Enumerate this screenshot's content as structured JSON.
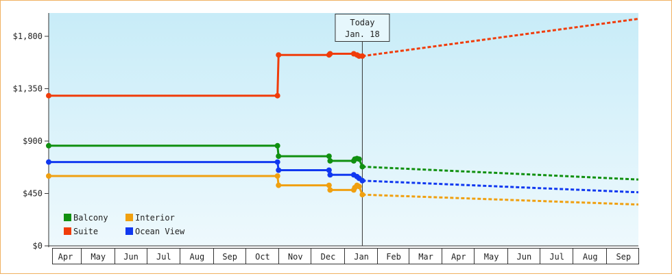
{
  "chart_data": {
    "type": "line",
    "title": "",
    "xlabel": "",
    "ylabel": "",
    "ylim": [
      0,
      2000
    ],
    "y_ticks": [
      {
        "value": 0,
        "label": "$0"
      },
      {
        "value": 450,
        "label": "$450"
      },
      {
        "value": 900,
        "label": "$900"
      },
      {
        "value": 1350,
        "label": "$1,350"
      },
      {
        "value": 1800,
        "label": "$1,800"
      }
    ],
    "x_range": [
      "2023-04-01",
      "2024-10-01"
    ],
    "x_ticks": [
      {
        "date": "2023-04-01",
        "label": "Apr"
      },
      {
        "date": "2023-05-01",
        "label": "May"
      },
      {
        "date": "2023-06-01",
        "label": "Jun"
      },
      {
        "date": "2023-07-01",
        "label": "Jul"
      },
      {
        "date": "2023-08-01",
        "label": "Aug"
      },
      {
        "date": "2023-09-01",
        "label": "Sep"
      },
      {
        "date": "2023-10-01",
        "label": "Oct"
      },
      {
        "date": "2023-11-01",
        "label": "Nov"
      },
      {
        "date": "2023-12-01",
        "label": "Dec"
      },
      {
        "date": "2024-01-01",
        "label": "Jan"
      },
      {
        "date": "2024-02-01",
        "label": "Feb"
      },
      {
        "date": "2024-03-01",
        "label": "Mar"
      },
      {
        "date": "2024-04-01",
        "label": "Apr"
      },
      {
        "date": "2024-05-01",
        "label": "May"
      },
      {
        "date": "2024-06-01",
        "label": "Jun"
      },
      {
        "date": "2024-07-01",
        "label": "Jul"
      },
      {
        "date": "2024-08-01",
        "label": "Aug"
      },
      {
        "date": "2024-09-01",
        "label": "Sep"
      }
    ],
    "today": {
      "date": "2024-01-18",
      "line1": "Today",
      "line2": "Jan. 18"
    },
    "legend_position": "bottom-left",
    "grid": false,
    "background_colors": [
      "#c8ecf8",
      "#eef9fd"
    ],
    "series": [
      {
        "name": "Balcony",
        "color": "#109010",
        "history": [
          {
            "date": "2023-04-01",
            "value": 860
          },
          {
            "date": "2023-10-31",
            "value": 860,
            "step": true
          },
          {
            "date": "2023-11-01",
            "value": 770,
            "step": true
          },
          {
            "date": "2023-12-18",
            "value": 770,
            "step": true
          },
          {
            "date": "2023-12-19",
            "value": 730,
            "step": true
          },
          {
            "date": "2024-01-10",
            "value": 730,
            "step": true
          },
          {
            "date": "2024-01-11",
            "value": 745,
            "step": true
          },
          {
            "date": "2024-01-13",
            "value": 750
          },
          {
            "date": "2024-01-15",
            "value": 745
          },
          {
            "date": "2024-01-18",
            "value": 680
          }
        ],
        "forecast": [
          {
            "date": "2024-01-18",
            "value": 680
          },
          {
            "date": "2024-10-01",
            "value": 570
          }
        ]
      },
      {
        "name": "Interior",
        "color": "#f0a010",
        "history": [
          {
            "date": "2023-04-01",
            "value": 600
          },
          {
            "date": "2023-10-31",
            "value": 600,
            "step": true
          },
          {
            "date": "2023-11-01",
            "value": 520,
            "step": true
          },
          {
            "date": "2023-12-18",
            "value": 520,
            "step": true
          },
          {
            "date": "2023-12-19",
            "value": 480,
            "step": true
          },
          {
            "date": "2024-01-10",
            "value": 480,
            "step": true
          },
          {
            "date": "2024-01-11",
            "value": 500,
            "step": true
          },
          {
            "date": "2024-01-13",
            "value": 520
          },
          {
            "date": "2024-01-15",
            "value": 510
          },
          {
            "date": "2024-01-18",
            "value": 440
          }
        ],
        "forecast": [
          {
            "date": "2024-01-18",
            "value": 440
          },
          {
            "date": "2024-10-01",
            "value": 355
          }
        ]
      },
      {
        "name": "Suite",
        "color": "#f03c0a",
        "history": [
          {
            "date": "2023-04-01",
            "value": 1290
          },
          {
            "date": "2023-10-31",
            "value": 1290,
            "step": true
          },
          {
            "date": "2023-11-01",
            "value": 1640,
            "step": true
          },
          {
            "date": "2023-12-18",
            "value": 1640,
            "step": true
          },
          {
            "date": "2023-12-19",
            "value": 1650,
            "step": true
          },
          {
            "date": "2024-01-10",
            "value": 1650
          },
          {
            "date": "2024-01-13",
            "value": 1640
          },
          {
            "date": "2024-01-15",
            "value": 1630
          },
          {
            "date": "2024-01-18",
            "value": 1630
          }
        ],
        "forecast": [
          {
            "date": "2024-01-18",
            "value": 1630
          },
          {
            "date": "2024-10-01",
            "value": 1950
          }
        ]
      },
      {
        "name": "Ocean View",
        "color": "#1038f0",
        "history": [
          {
            "date": "2023-04-01",
            "value": 720
          },
          {
            "date": "2023-10-31",
            "value": 720,
            "step": true
          },
          {
            "date": "2023-11-01",
            "value": 650,
            "step": true
          },
          {
            "date": "2023-12-18",
            "value": 650,
            "step": true
          },
          {
            "date": "2023-12-19",
            "value": 610,
            "step": true
          },
          {
            "date": "2024-01-10",
            "value": 610
          },
          {
            "date": "2024-01-13",
            "value": 595
          },
          {
            "date": "2024-01-15",
            "value": 580
          },
          {
            "date": "2024-01-18",
            "value": 560
          }
        ],
        "forecast": [
          {
            "date": "2024-01-18",
            "value": 560
          },
          {
            "date": "2024-10-01",
            "value": 460
          }
        ]
      }
    ]
  }
}
